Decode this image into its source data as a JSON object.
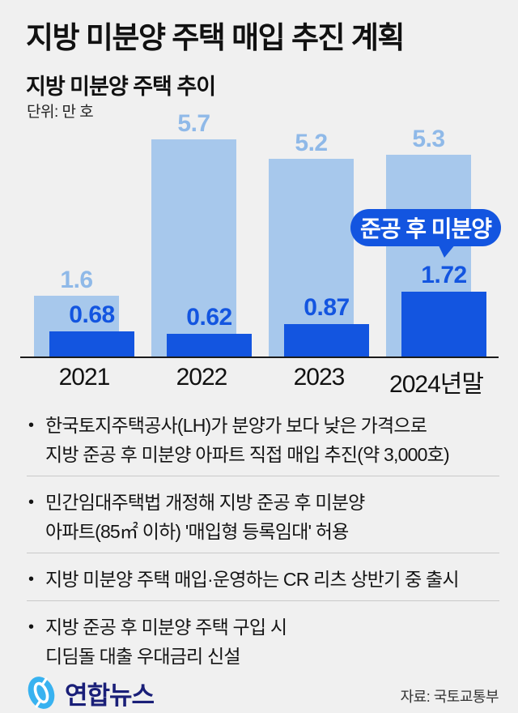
{
  "header": {
    "title": "지방 미분양 주택 매입 추진 계획",
    "chart_title": "지방 미분양 주택 추이",
    "unit": "단위: 만 호"
  },
  "chart_data": {
    "type": "bar",
    "categories": [
      "2021",
      "2022",
      "2023",
      "2024년말"
    ],
    "series": [
      {
        "name": "지방 미분양 주택",
        "values": [
          1.6,
          5.7,
          5.2,
          5.3
        ],
        "labels": [
          "1.6",
          "5.7",
          "5.2",
          "5.3"
        ],
        "color": "#a7c8ec",
        "label_color": "#8fb9e8"
      },
      {
        "name": "준공 후 미분양",
        "values": [
          0.68,
          0.62,
          0.87,
          1.72
        ],
        "labels": [
          "0.68",
          "0.62",
          "0.87",
          "1.72"
        ],
        "color": "#1355e0",
        "label_color": "#1355e0"
      }
    ],
    "title": "지방 미분양 주택 추이",
    "xlabel": "",
    "ylabel": "단위: 만 호",
    "ylim": [
      0,
      6
    ],
    "grid": false,
    "legend_position": "none",
    "callout": {
      "label": "준공 후 미분양",
      "color": "#1355e0",
      "text_color": "#ffffff"
    }
  },
  "bullets": [
    {
      "lines": [
        "한국토지주택공사(LH)가 분양가 보다 낮은 가격으로",
        "지방 준공 후 미분양 아파트 직접 매입 추진(약 3,000호)"
      ]
    },
    {
      "lines": [
        "민간임대주택법 개정해 지방 준공 후 미분양",
        "아파트(85㎡ 이하) '매입형 등록임대' 허용"
      ]
    },
    {
      "lines": [
        "지방 미분양 주택 매입·운영하는 CR 리츠 상반기 중 출시"
      ]
    },
    {
      "lines": [
        "지방 준공 후 미분양 주택 구입 시",
        "디딤돌 대출 우대금리 신설"
      ]
    }
  ],
  "footer": {
    "logo_text": "연합뉴스",
    "source": "자료: 국토교통부"
  },
  "colors": {
    "background": "#f0f0f0",
    "bar_light": "#a7c8ec",
    "bar_dark": "#1355e0",
    "light_label": "#8fb9e8",
    "axis": "#1a1a1a",
    "divider": "#c9c9c9",
    "logo_blue": "#38b2f0",
    "logo_navy": "#1a1f78",
    "text": "#141414"
  }
}
